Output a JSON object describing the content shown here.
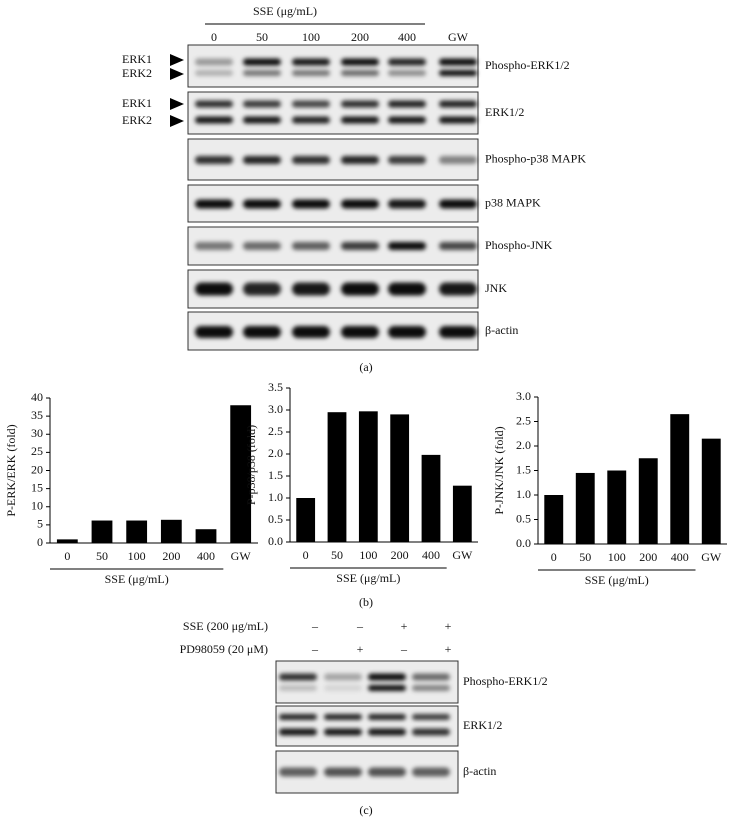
{
  "panel_a": {
    "treatment": "SSE (μg/mL)",
    "lanes": [
      "0",
      "50",
      "100",
      "200",
      "400",
      "GW"
    ],
    "band_labels": [
      "ERK1",
      "ERK2"
    ],
    "rows": [
      "Phospho-ERK1/2",
      "ERK1/2",
      "Phospho-p38 MAPK",
      "p38 MAPK",
      "Phospho-JNK",
      "JNK",
      "β-actin"
    ],
    "label": "(a)"
  },
  "chart_data": [
    {
      "type": "bar",
      "y_label": "P-ERK/ERK (fold)",
      "x_label": "SSE (μg/mL)",
      "categories": [
        "0",
        "50",
        "100",
        "200",
        "400",
        "GW"
      ],
      "values": [
        1,
        6.2,
        6.2,
        6.4,
        3.8,
        38
      ],
      "color": "#000000",
      "ylim": [
        0,
        40
      ],
      "yticks": [
        0,
        5,
        10,
        15,
        20,
        25,
        30,
        35,
        40
      ]
    },
    {
      "type": "bar",
      "y_label": "P-p38/p38 (fold)",
      "x_label": "SSE (μg/mL)",
      "categories": [
        "0",
        "50",
        "100",
        "200",
        "400",
        "GW"
      ],
      "values": [
        1.0,
        2.95,
        2.97,
        2.9,
        1.98,
        1.28
      ],
      "color": "#000000",
      "ylim": [
        0,
        3.5
      ],
      "yticks": [
        {
          "value": 0,
          "label": "0.0"
        },
        0.5,
        {
          "value": 1,
          "label": "1.0"
        },
        1.5,
        {
          "value": 2,
          "label": "2.0"
        },
        2.5,
        {
          "value": 3,
          "label": "3.0"
        },
        3.5
      ]
    },
    {
      "type": "bar",
      "y_label": "P-JNK/JNK (fold)",
      "x_label": "SSE (μg/mL)",
      "categories": [
        "0",
        "50",
        "100",
        "200",
        "400",
        "GW"
      ],
      "values": [
        1.0,
        1.45,
        1.5,
        1.75,
        2.65,
        2.15
      ],
      "color": "#000000",
      "ylim": [
        0,
        3
      ],
      "yticks": [
        {
          "value": 0,
          "label": "0.0"
        },
        0.5,
        {
          "value": 1,
          "label": "1.0"
        },
        1.5,
        {
          "value": 2,
          "label": "2.0"
        },
        2.5,
        {
          "value": 3,
          "label": "3.0"
        }
      ]
    }
  ],
  "panel_b_label": "(b)",
  "panel_c": {
    "treatments": [
      {
        "name": "SSE (200 μg/mL)",
        "signs": [
          "–",
          "–",
          "+",
          "+"
        ]
      },
      {
        "name": "PD98059 (20 μM)",
        "signs": [
          "–",
          "+",
          "–",
          "+"
        ]
      }
    ],
    "rows": [
      "Phospho-ERK1/2",
      "ERK1/2",
      "β-actin"
    ],
    "label": "(c)"
  }
}
